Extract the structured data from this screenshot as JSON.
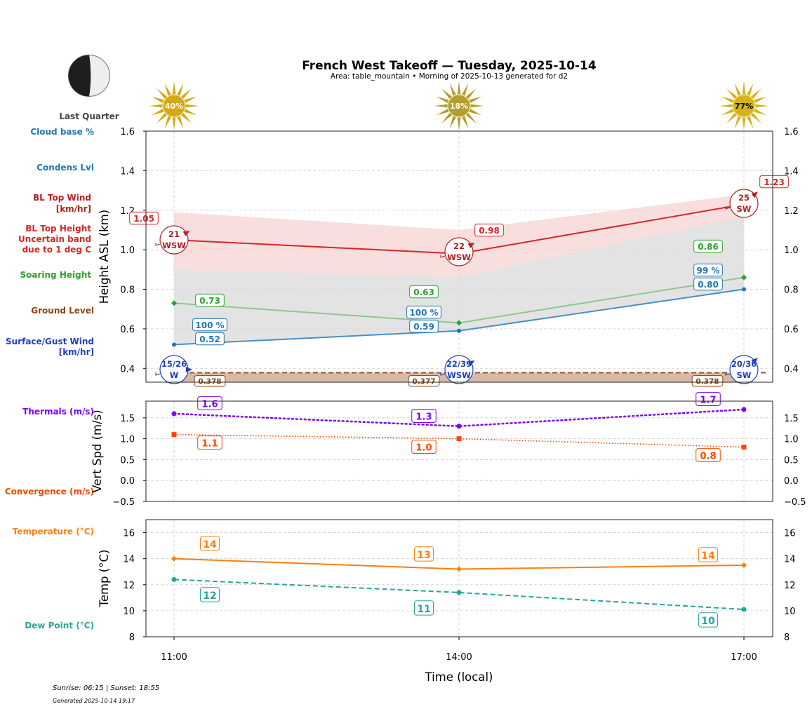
{
  "header": {
    "title": "French West Takeoff — Tuesday, 2025-10-14",
    "subtitle": "Area: table_mountain • Morning of 2025-10-13 generated for d2"
  },
  "moon": {
    "phase": "Last Quarter",
    "icon": "moon-last-quarter-icon"
  },
  "sun_icons": [
    {
      "time": "11:00",
      "label": "40%",
      "value": 40
    },
    {
      "time": "14:00",
      "label": "18%",
      "value": 18
    },
    {
      "time": "17:00",
      "label": "77%",
      "value": 77
    }
  ],
  "side_labels": {
    "cloud_base": "Cloud base %",
    "condens": "Condens Lvl",
    "bl_top_wind_1": "BL Top Wind",
    "bl_top_wind_2": "[km/hr]",
    "bl_top_height_1": "BL Top Height",
    "bl_top_height_2": "Uncertain band",
    "bl_top_height_3": "due to 1 deg C",
    "soaring": "Soaring Height",
    "ground": "Ground Level",
    "surface_wind_1": "Surface/Gust Wind",
    "surface_wind_2": "[km/hr]",
    "thermals": "Thermals (m/s)",
    "convergence": "Convergence (m/s)",
    "temperature": "Temperature (°C)",
    "dewpoint": "Dew Point (°C)"
  },
  "colors": {
    "bl_top": "#d62728",
    "bl_band": "#f4c2c2",
    "soaring": "#2ca02c",
    "condens": "#1f77b4",
    "ground": "#8b4513",
    "surface_wind": "#1f3fbf",
    "thermals": "#7f00ff",
    "convergence": "#ff4500",
    "temperature": "#ff7f0e",
    "dewpoint": "#26a69a",
    "sun": "#d4af1a"
  },
  "footer": {
    "sun_times": "Sunrise: 06:15 | Sunset: 18:55",
    "generated": "Generated 2025-10-14 19:17"
  },
  "chart_data": [
    {
      "type": "line",
      "title": "Height panel",
      "ylabel": "Height ASL (km)",
      "ylim": [
        0.33,
        1.6
      ],
      "yticks": [
        "0.4",
        "0.6",
        "0.8",
        "1.0",
        "1.2",
        "1.4",
        "1.6"
      ],
      "ytick_values": [
        0.4,
        0.6,
        0.8,
        1.0,
        1.2,
        1.4,
        1.6
      ],
      "x": [
        "11:00",
        "14:00",
        "17:00"
      ],
      "grid": true,
      "series": [
        {
          "name": "BL Top Height",
          "values": [
            1.05,
            0.98,
            1.23
          ],
          "labels": [
            "1.05",
            "0.98",
            "1.23"
          ]
        },
        {
          "name": "BL Top Uncertain band upper",
          "values": [
            1.19,
            1.1,
            1.28
          ]
        },
        {
          "name": "BL Top Uncertain band lower",
          "values": [
            0.9,
            0.86,
            1.17
          ]
        },
        {
          "name": "Soaring Height",
          "values": [
            0.73,
            0.63,
            0.86
          ],
          "labels": [
            "0.73",
            "0.63",
            "0.86"
          ]
        },
        {
          "name": "Condens Lvl",
          "values": [
            0.52,
            0.59,
            0.8
          ],
          "labels": [
            "0.52",
            "0.59",
            "0.80"
          ]
        },
        {
          "name": "Cloud base %",
          "values": [
            100,
            100,
            99
          ],
          "labels": [
            "100 %",
            "100 %",
            "99 %"
          ]
        },
        {
          "name": "Ground Level",
          "values": [
            0.378,
            0.377,
            0.378
          ],
          "labels": [
            "0.378",
            "0.377",
            "0.378"
          ]
        }
      ],
      "bl_top_wind": [
        {
          "speed": "21",
          "dir": "WSW"
        },
        {
          "speed": "22",
          "dir": "WSW"
        },
        {
          "speed": "25",
          "dir": "SW"
        }
      ],
      "surface_wind": [
        {
          "speed": "15/26",
          "dir": "W"
        },
        {
          "speed": "22/39",
          "dir": "WSW"
        },
        {
          "speed": "20/36",
          "dir": "SW"
        }
      ]
    },
    {
      "type": "line",
      "title": "Vertical speed panel",
      "ylabel": "Vert Spd (m/s)",
      "ylim": [
        -0.5,
        1.9
      ],
      "yticks": [
        "−0.5",
        "0.0",
        "0.5",
        "1.0",
        "1.5"
      ],
      "ytick_values": [
        -0.5,
        0.0,
        0.5,
        1.0,
        1.5
      ],
      "x": [
        "11:00",
        "14:00",
        "17:00"
      ],
      "grid": true,
      "series": [
        {
          "name": "Thermals (m/s)",
          "values": [
            1.6,
            1.3,
            1.7
          ],
          "labels": [
            "1.6",
            "1.3",
            "1.7"
          ]
        },
        {
          "name": "Convergence (m/s)",
          "values": [
            1.1,
            1.0,
            0.8
          ],
          "labels": [
            "1.1",
            "1.0",
            "0.8"
          ]
        }
      ]
    },
    {
      "type": "line",
      "title": "Temperature panel",
      "ylabel": "Temp (°C)",
      "xlabel": "Time (local)",
      "ylim": [
        8,
        17
      ],
      "yticks": [
        "8",
        "10",
        "12",
        "14",
        "16"
      ],
      "ytick_values": [
        8,
        10,
        12,
        14,
        16
      ],
      "x": [
        "11:00",
        "14:00",
        "17:00"
      ],
      "grid": true,
      "series": [
        {
          "name": "Temperature (°C)",
          "values": [
            14.0,
            13.2,
            13.5
          ],
          "labels": [
            "14",
            "13",
            "14"
          ]
        },
        {
          "name": "Dew Point (°C)",
          "values": [
            12.4,
            11.4,
            10.1
          ],
          "labels": [
            "12",
            "11",
            "10"
          ]
        }
      ]
    }
  ]
}
